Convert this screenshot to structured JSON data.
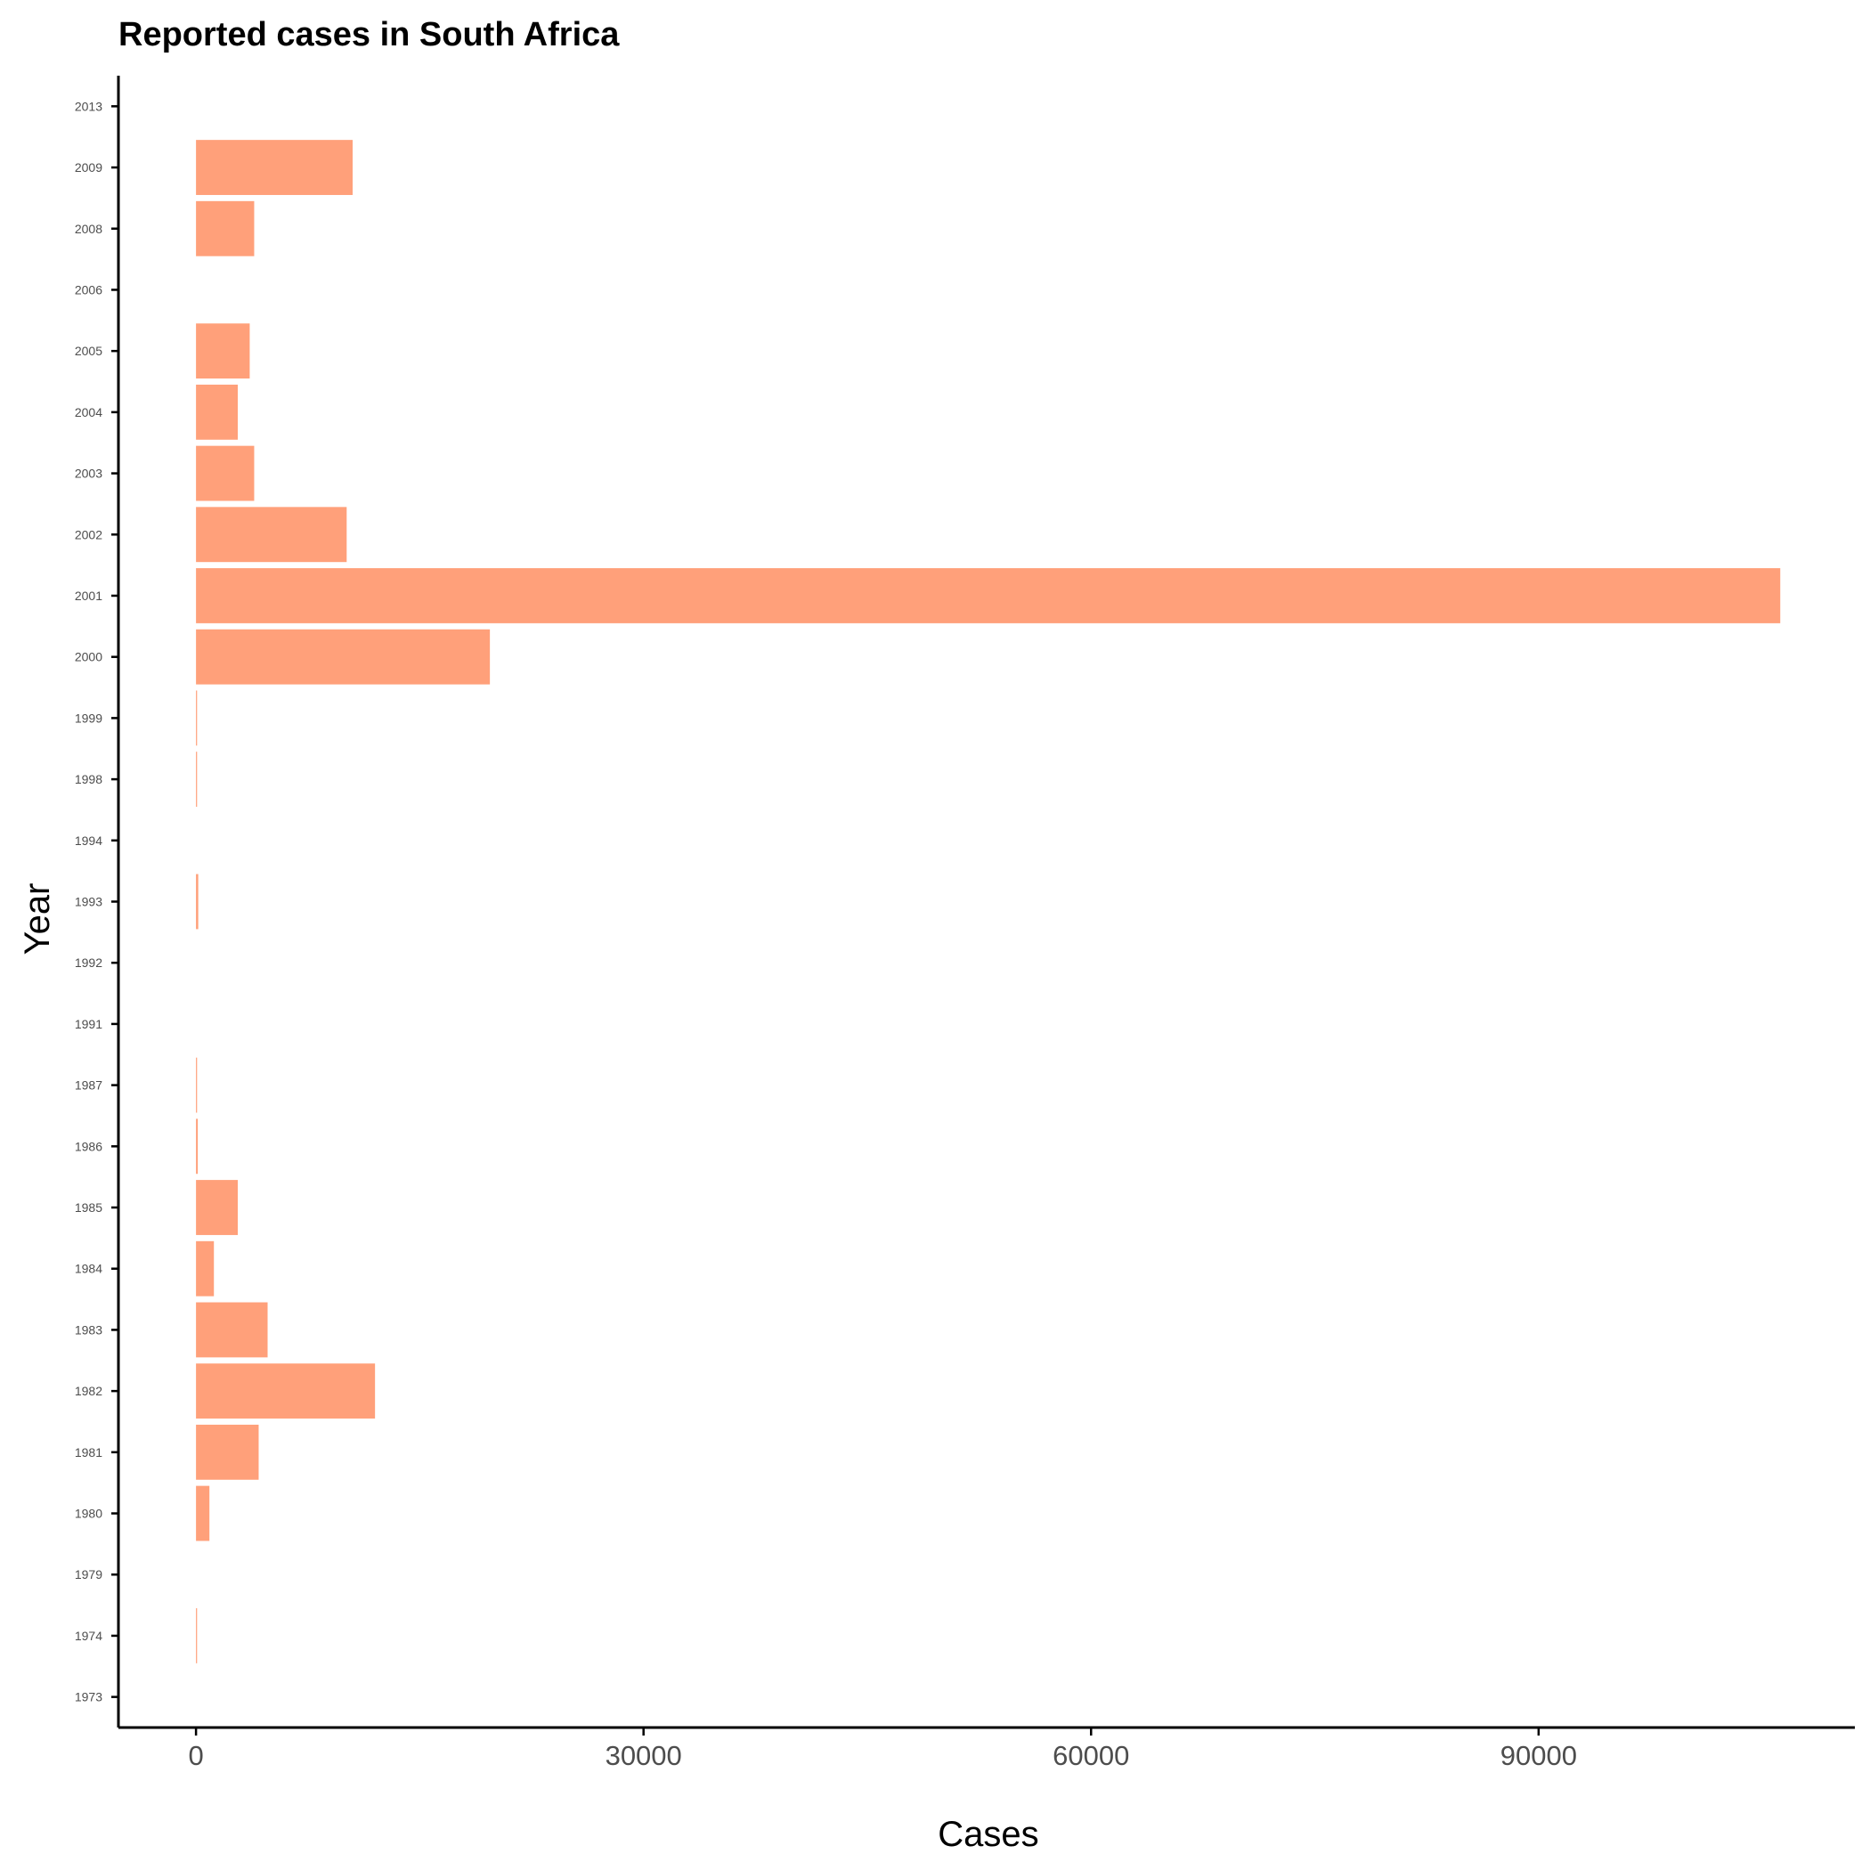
{
  "chart_data": {
    "type": "bar",
    "orientation": "horizontal",
    "title": "Reported cases in South Africa",
    "xlabel": "Cases",
    "ylabel": "Year",
    "categories": [
      "1973",
      "1974",
      "1979",
      "1980",
      "1981",
      "1982",
      "1983",
      "1984",
      "1985",
      "1986",
      "1987",
      "1991",
      "1992",
      "1993",
      "1994",
      "1998",
      "1999",
      "2000",
      "2001",
      "2002",
      "2003",
      "2004",
      "2005",
      "2006",
      "2008",
      "2009",
      "2013"
    ],
    "values": [
      0,
      20,
      0,
      900,
      4200,
      12000,
      4800,
      1200,
      2800,
      120,
      30,
      0,
      0,
      150,
      0,
      40,
      60,
      19700,
      106200,
      10100,
      3900,
      2800,
      3600,
      0,
      3900,
      10500,
      0
    ],
    "xticks": [
      0,
      30000,
      60000,
      90000
    ],
    "xlim": [
      -5200,
      111200
    ],
    "grid": false,
    "legend": "none",
    "bar_color": "#FFA07A",
    "axis_color": "#000000"
  }
}
